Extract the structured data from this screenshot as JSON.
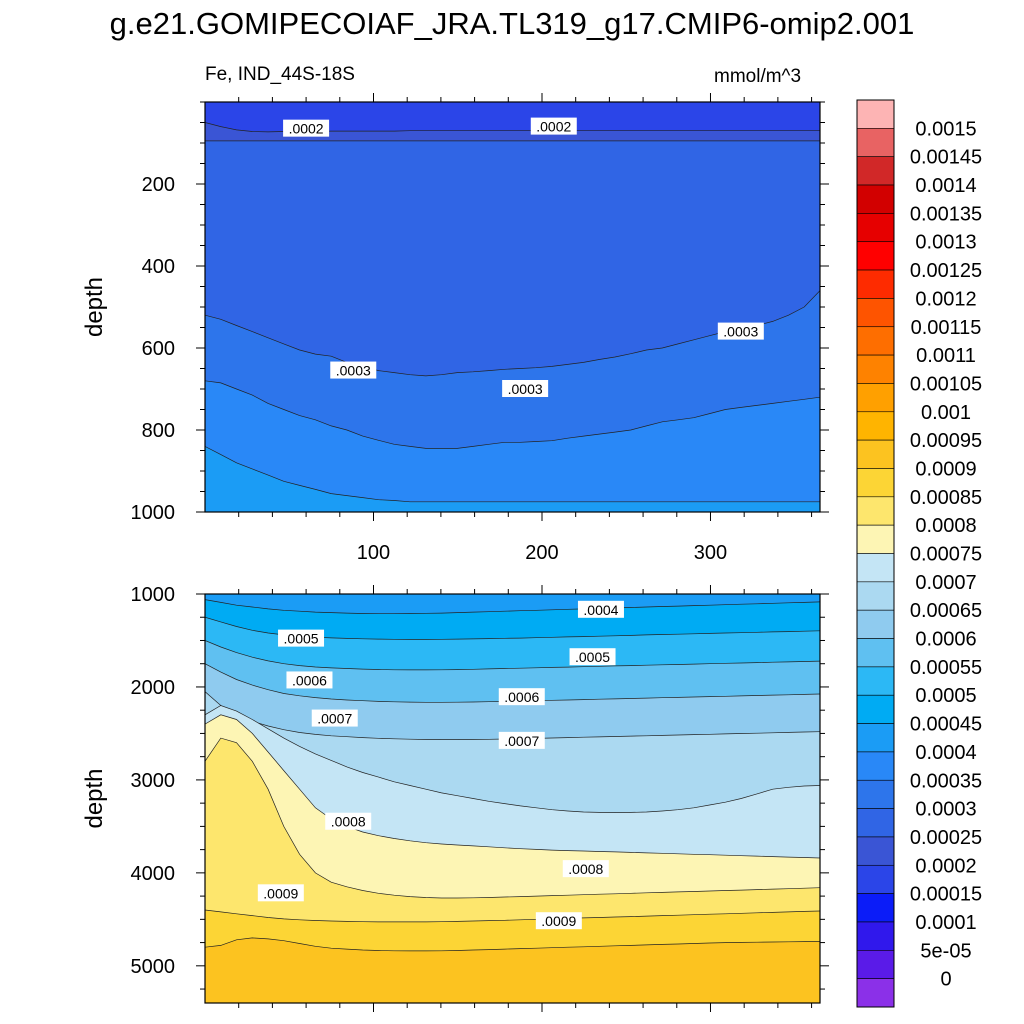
{
  "title": "g.e21.GOMIPECOIAF_JRA.TL319_g17.CMIP6-omip2.001",
  "subtitle_left": "Fe, IND_44S-18S",
  "units": "mmol/m^3",
  "colorbar": {
    "labels": [
      "0.0015",
      "0.00145",
      "0.0014",
      "0.00135",
      "0.0013",
      "0.00125",
      "0.0012",
      "0.00115",
      "0.0011",
      "0.00105",
      "0.001",
      "0.00095",
      "0.0009",
      "0.00085",
      "0.0008",
      "0.00075",
      "0.0007",
      "0.00065",
      "0.0006",
      "0.00055",
      "0.0005",
      "0.00045",
      "0.0004",
      "0.00035",
      "0.0003",
      "0.00025",
      "0.0002",
      "0.00015",
      "0.0001",
      "5e-05",
      "0"
    ],
    "colors": [
      "#fdb4b4",
      "#e86363",
      "#d12828",
      "#d20000",
      "#e60000",
      "#ff0000",
      "#fe2b00",
      "#fe5400",
      "#fe6e00",
      "#fe8200",
      "#ffa000",
      "#ffb400",
      "#fcc320",
      "#fcd535",
      "#fde66d",
      "#fdf5b4",
      "#c4e5f5",
      "#abd9f1",
      "#8fcbef",
      "#5fc0f1",
      "#2cb8f5",
      "#00abf3",
      "#1b9cf5",
      "#2988f7",
      "#2d75eb",
      "#3065e5",
      "#3a55d5",
      "#2b45e8",
      "#0b1cf8",
      "#3018ec",
      "#5a1be8",
      "#8b30e8"
    ]
  },
  "chart_data": [
    {
      "type": "contour",
      "panel": "top",
      "variable": "Fe",
      "region": "IND_44S-18S",
      "xlabel": "",
      "ylabel": "depth",
      "xlim": [
        0,
        365
      ],
      "ylim": [
        1000,
        0
      ],
      "xticks": [
        100,
        200,
        300
      ],
      "yticks": [
        200,
        400,
        600,
        800,
        1000
      ],
      "bands": [
        {
          "level": 0.00015,
          "upper_depths": [
            0,
            0,
            0,
            0,
            0,
            0,
            0,
            0,
            0,
            0,
            0,
            0,
            0,
            0,
            0,
            0,
            0,
            0,
            0,
            0,
            0,
            0,
            0,
            0,
            0,
            0,
            0,
            0,
            0,
            0,
            0,
            0,
            0,
            0,
            0,
            0,
            0,
            0,
            0,
            0
          ],
          "color": "#2b45e8"
        },
        {
          "level": 0.0002,
          "upper_depths": [
            50,
            60,
            68,
            72,
            73,
            72,
            72,
            72,
            71,
            71,
            71,
            71,
            71,
            70,
            70,
            70,
            70,
            70,
            70,
            70,
            70,
            70,
            70,
            70,
            70,
            70,
            70,
            70,
            70,
            70,
            70,
            70,
            70,
            70,
            70,
            70,
            70,
            70,
            70,
            70
          ],
          "color": "#3a55d5"
        },
        {
          "level": 0.00025,
          "upper_depths": [
            95,
            95,
            95,
            95,
            95,
            95,
            95,
            95,
            95,
            95,
            95,
            95,
            95,
            95,
            95,
            95,
            95,
            95,
            95,
            95,
            95,
            95,
            95,
            95,
            95,
            95,
            95,
            95,
            95,
            95,
            95,
            95,
            95,
            95,
            95,
            95,
            95,
            95,
            95,
            95
          ],
          "color": "#3065e5"
        },
        {
          "level": 0.0003,
          "upper_depths": [
            520,
            530,
            545,
            560,
            575,
            590,
            605,
            615,
            620,
            635,
            645,
            655,
            660,
            665,
            668,
            665,
            660,
            658,
            655,
            652,
            650,
            648,
            645,
            640,
            635,
            628,
            622,
            614,
            605,
            600,
            590,
            580,
            570,
            560,
            550,
            545,
            535,
            520,
            500,
            460
          ],
          "color": "#2d75eb"
        },
        {
          "level": 0.00035,
          "upper_depths": [
            680,
            685,
            700,
            715,
            735,
            750,
            765,
            775,
            790,
            800,
            815,
            825,
            835,
            840,
            845,
            845,
            845,
            840,
            835,
            830,
            830,
            828,
            826,
            820,
            815,
            810,
            805,
            800,
            790,
            780,
            775,
            770,
            760,
            750,
            745,
            740,
            735,
            730,
            725,
            720
          ],
          "color": "#2988f7"
        },
        {
          "level": 0.0004,
          "upper_depths": [
            840,
            860,
            880,
            895,
            910,
            925,
            935,
            945,
            955,
            960,
            965,
            970,
            972,
            975,
            975,
            975,
            975,
            975,
            975,
            975,
            975,
            975,
            975,
            975,
            975,
            975,
            975,
            975,
            975,
            975,
            975,
            975,
            975,
            975,
            975,
            975,
            975,
            975,
            975,
            975
          ],
          "color": "#1b9cf5"
        }
      ],
      "contour_labels": [
        {
          "text": ".0002",
          "x": 60,
          "depth": 65
        },
        {
          "text": ".0002",
          "x": 207,
          "depth": 60
        },
        {
          "text": ".0003",
          "x": 88,
          "depth": 655
        },
        {
          "text": ".0003",
          "x": 190,
          "depth": 700
        },
        {
          "text": ".0003",
          "x": 318,
          "depth": 560
        }
      ]
    },
    {
      "type": "contour",
      "panel": "bottom",
      "variable": "Fe",
      "region": "IND_44S-18S",
      "xlabel": "",
      "ylabel": "depth",
      "xlim": [
        0,
        365
      ],
      "ylim": [
        5400,
        1000
      ],
      "xticks": [
        100,
        200,
        300
      ],
      "yticks": [
        1000,
        2000,
        3000,
        4000,
        5000
      ],
      "bands": [
        {
          "level": 0.0004,
          "upper_depths": [
            1000,
            1000,
            1000,
            1000,
            1000,
            1000,
            1000,
            1000,
            1000,
            1000,
            1000,
            1000,
            1000,
            1000,
            1000,
            1000,
            1000,
            1000,
            1000,
            1000,
            1000,
            1000,
            1000,
            1000,
            1000,
            1000,
            1000,
            1000,
            1000,
            1000,
            1000,
            1000,
            1000,
            1000,
            1000,
            1000,
            1000,
            1000,
            1000,
            1000
          ],
          "color": "#1b9cf5"
        },
        {
          "level": 0.00045,
          "upper_depths": [
            1060,
            1090,
            1120,
            1140,
            1160,
            1175,
            1185,
            1195,
            1200,
            1205,
            1210,
            1212,
            1212,
            1210,
            1208,
            1205,
            1200,
            1195,
            1190,
            1185,
            1180,
            1175,
            1170,
            1165,
            1160,
            1155,
            1150,
            1145,
            1140,
            1135,
            1130,
            1125,
            1120,
            1115,
            1110,
            1105,
            1100,
            1095,
            1090,
            1085
          ],
          "color": "#00abf3"
        },
        {
          "level": 0.0005,
          "upper_depths": [
            1250,
            1300,
            1350,
            1390,
            1420,
            1440,
            1455,
            1465,
            1472,
            1478,
            1482,
            1485,
            1487,
            1488,
            1488,
            1487,
            1485,
            1483,
            1480,
            1477,
            1474,
            1470,
            1466,
            1462,
            1458,
            1454,
            1450,
            1445,
            1440,
            1436,
            1432,
            1428,
            1424,
            1420,
            1416,
            1412,
            1408,
            1404,
            1400,
            1396
          ],
          "color": "#2cb8f5"
        },
        {
          "level": 0.00055,
          "upper_depths": [
            1500,
            1570,
            1630,
            1680,
            1720,
            1750,
            1770,
            1785,
            1795,
            1802,
            1808,
            1812,
            1815,
            1816,
            1816,
            1815,
            1813,
            1810,
            1806,
            1802,
            1798,
            1794,
            1790,
            1786,
            1782,
            1778,
            1774,
            1770,
            1766,
            1762,
            1758,
            1754,
            1750,
            1746,
            1742,
            1738,
            1734,
            1730,
            1726,
            1722
          ],
          "color": "#5fc0f1"
        },
        {
          "level": 0.0006,
          "upper_depths": [
            1750,
            1840,
            1920,
            1980,
            2030,
            2070,
            2095,
            2115,
            2130,
            2140,
            2148,
            2155,
            2160,
            2163,
            2165,
            2165,
            2164,
            2162,
            2159,
            2156,
            2152,
            2148,
            2144,
            2140,
            2136,
            2132,
            2128,
            2124,
            2120,
            2116,
            2112,
            2108,
            2104,
            2100,
            2096,
            2092,
            2088,
            2084,
            2080,
            2076
          ],
          "color": "#8fcbef"
        },
        {
          "level": 0.00065,
          "upper_depths": [
            2050,
            2200,
            2300,
            2370,
            2420,
            2460,
            2490,
            2510,
            2525,
            2535,
            2545,
            2552,
            2558,
            2562,
            2565,
            2566,
            2566,
            2565,
            2563,
            2560,
            2557,
            2553,
            2549,
            2545,
            2541,
            2537,
            2533,
            2529,
            2525,
            2521,
            2517,
            2513,
            2509,
            2505,
            2501,
            2497,
            2493,
            2489,
            2485,
            2481
          ],
          "color": "#abd9f1"
        },
        {
          "level": 0.0007,
          "upper_depths": [
            2300,
            2200,
            2260,
            2350,
            2450,
            2550,
            2640,
            2720,
            2790,
            2860,
            2920,
            2970,
            3020,
            3060,
            3100,
            3140,
            3170,
            3200,
            3230,
            3255,
            3280,
            3300,
            3320,
            3335,
            3345,
            3350,
            3352,
            3350,
            3345,
            3335,
            3320,
            3300,
            3270,
            3240,
            3200,
            3150,
            3100,
            3080,
            3065,
            3060
          ],
          "color": "#c4e5f5"
        },
        {
          "level": 0.00075,
          "upper_depths": [
            2400,
            2300,
            2350,
            2500,
            2700,
            2900,
            3100,
            3300,
            3420,
            3500,
            3560,
            3600,
            3630,
            3655,
            3675,
            3690,
            3700,
            3710,
            3720,
            3730,
            3740,
            3748,
            3755,
            3760,
            3765,
            3770,
            3775,
            3780,
            3785,
            3790,
            3795,
            3800,
            3805,
            3810,
            3815,
            3820,
            3825,
            3830,
            3835,
            3840
          ],
          "color": "#fdf5b4"
        },
        {
          "level": 0.0008,
          "upper_depths": [
            2800,
            2550,
            2600,
            2800,
            3100,
            3500,
            3800,
            4000,
            4100,
            4150,
            4190,
            4220,
            4240,
            4255,
            4265,
            4270,
            4270,
            4268,
            4265,
            4260,
            4255,
            4250,
            4245,
            4240,
            4235,
            4230,
            4225,
            4220,
            4215,
            4210,
            4205,
            4200,
            4195,
            4190,
            4185,
            4180,
            4175,
            4170,
            4165,
            4160
          ],
          "color": "#fde66d"
        },
        {
          "level": 0.00085,
          "upper_depths": [
            4400,
            4420,
            4440,
            4460,
            4480,
            4495,
            4505,
            4512,
            4518,
            4522,
            4525,
            4527,
            4528,
            4528,
            4527,
            4525,
            4522,
            4518,
            4514,
            4510,
            4505,
            4500,
            4495,
            4490,
            4485,
            4480,
            4475,
            4470,
            4465,
            4460,
            4455,
            4450,
            4445,
            4440,
            4435,
            4430,
            4425,
            4420,
            4415,
            4410
          ],
          "color": "#fcd535"
        },
        {
          "level": 0.0009,
          "upper_depths": [
            4800,
            4780,
            4720,
            4700,
            4710,
            4730,
            4760,
            4790,
            4810,
            4820,
            4830,
            4835,
            4838,
            4840,
            4840,
            4838,
            4835,
            4830,
            4825,
            4820,
            4815,
            4810,
            4805,
            4800,
            4795,
            4790,
            4785,
            4780,
            4775,
            4770,
            4765,
            4760,
            4755,
            4750,
            4748,
            4746,
            4744,
            4742,
            4740,
            4738
          ],
          "color": "#fcc320"
        }
      ],
      "contour_labels": [
        {
          "text": ".0004",
          "x": 235,
          "depth": 1170
        },
        {
          "text": ".0005",
          "x": 57,
          "depth": 1480
        },
        {
          "text": ".0005",
          "x": 230,
          "depth": 1680
        },
        {
          "text": ".0006",
          "x": 62,
          "depth": 1930
        },
        {
          "text": ".0006",
          "x": 188,
          "depth": 2110
        },
        {
          "text": ".0007",
          "x": 77,
          "depth": 2340
        },
        {
          "text": ".0007",
          "x": 188,
          "depth": 2580
        },
        {
          "text": ".0008",
          "x": 85,
          "depth": 3450
        },
        {
          "text": ".0008",
          "x": 226,
          "depth": 3960
        },
        {
          "text": ".0009",
          "x": 45,
          "depth": 4220
        },
        {
          "text": ".0009",
          "x": 210,
          "depth": 4520
        }
      ]
    }
  ]
}
